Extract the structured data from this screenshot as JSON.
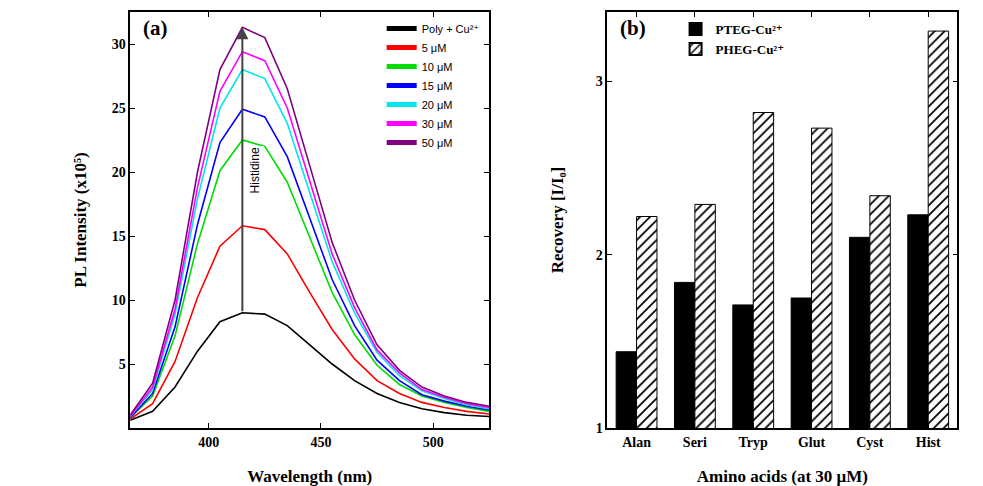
{
  "chart_data": [
    {
      "type": "line",
      "panel": "(a)",
      "x_label": "Wavelength (nm)",
      "y_label": "PL Intensity (x10⁵)",
      "annotation": "Histidine",
      "x": [
        365,
        375,
        385,
        395,
        405,
        415,
        425,
        435,
        445,
        455,
        465,
        475,
        485,
        495,
        505,
        515,
        525
      ],
      "xlim": [
        365,
        525
      ],
      "xticks": [
        400,
        450,
        500
      ],
      "ylim": [
        0,
        32.5
      ],
      "yticks": [
        5,
        10,
        15,
        20,
        25,
        30
      ],
      "grid": false,
      "legend": "upper right",
      "series": [
        {
          "name": "Poly + Cu²⁺",
          "color": "#000000",
          "values": [
            0.6,
            1.3,
            3.2,
            6.0,
            8.3,
            9.0,
            8.9,
            8.0,
            6.5,
            5.0,
            3.7,
            2.7,
            2.0,
            1.5,
            1.2,
            1.0,
            0.9
          ]
        },
        {
          "name": "5 μM",
          "color": "#ff0000",
          "values": [
            0.7,
            1.9,
            5.2,
            10.2,
            14.2,
            15.8,
            15.5,
            13.6,
            10.6,
            7.7,
            5.4,
            3.7,
            2.7,
            2.0,
            1.6,
            1.3,
            1.1
          ]
        },
        {
          "name": "10 μM",
          "color": "#00dd00",
          "values": [
            0.8,
            2.5,
            7.2,
            14.4,
            20.1,
            22.5,
            22.0,
            19.2,
            14.9,
            10.6,
            7.3,
            4.9,
            3.4,
            2.5,
            2.0,
            1.6,
            1.3
          ]
        },
        {
          "name": "15 μM",
          "color": "#0000ff",
          "values": [
            0.8,
            2.7,
            7.9,
            15.9,
            22.3,
            24.9,
            24.3,
            21.2,
            16.4,
            11.6,
            8.0,
            5.3,
            3.7,
            2.6,
            2.1,
            1.7,
            1.4
          ]
        },
        {
          "name": "20 μM",
          "color": "#00e5ee",
          "values": [
            0.9,
            3.0,
            8.9,
            17.9,
            25.0,
            28.0,
            27.3,
            23.8,
            18.4,
            13.0,
            9.0,
            5.9,
            4.1,
            2.9,
            2.3,
            1.8,
            1.5
          ]
        },
        {
          "name": "30 μM",
          "color": "#ff00ff",
          "values": [
            0.9,
            3.2,
            9.3,
            18.8,
            26.3,
            29.4,
            28.7,
            25.0,
            19.3,
            13.6,
            9.4,
            6.1,
            4.3,
            3.0,
            2.4,
            1.9,
            1.6
          ]
        },
        {
          "name": "50 μM",
          "color": "#800080",
          "values": [
            1.0,
            3.5,
            10.0,
            20.0,
            28.0,
            31.3,
            30.5,
            26.5,
            20.5,
            14.5,
            10.0,
            6.5,
            4.5,
            3.2,
            2.5,
            2.0,
            1.7
          ]
        }
      ]
    },
    {
      "type": "bar",
      "panel": "(b)",
      "x_label": "Amino acids (at 30 μM)",
      "y_label": "Recovery [I/I₀]",
      "categories": [
        "Alan",
        "Seri",
        "Tryp",
        "Glut",
        "Cyst",
        "Hist"
      ],
      "ylim": [
        1,
        3.4
      ],
      "yticks": [
        1,
        2,
        3
      ],
      "grid": false,
      "legend": "upper left",
      "series": [
        {
          "name": "PTEG-Cu²⁺",
          "color": "#000000",
          "values": [
            1.44,
            1.84,
            1.71,
            1.75,
            2.1,
            2.23
          ]
        },
        {
          "name": "PHEG-Cu²⁺",
          "color": "#000000",
          "marker": "hatched",
          "values": [
            2.22,
            2.29,
            2.82,
            2.73,
            2.34,
            3.29
          ]
        }
      ]
    }
  ]
}
